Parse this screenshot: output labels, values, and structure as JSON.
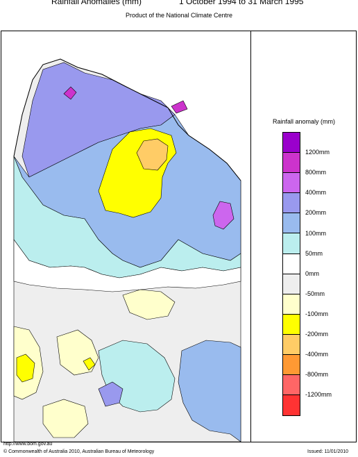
{
  "header": {
    "title": "Rainfall Anomalies (mm)",
    "period": "1 October 1994 to 31 March 1995",
    "subtitle": "Product of the National Climate Centre"
  },
  "legend": {
    "title": "Rainfall anomaly (mm)",
    "bins": [
      {
        "color": "#9a00cc"
      },
      {
        "color": "#cc33cc"
      },
      {
        "color": "#cc66ee"
      },
      {
        "color": "#9999ee"
      },
      {
        "color": "#99bbee"
      },
      {
        "color": "#bbeeee"
      },
      {
        "color": "#ffffff"
      },
      {
        "color": "#eeeeee"
      },
      {
        "color": "#ffffcc"
      },
      {
        "color": "#ffff00"
      },
      {
        "color": "#ffcc66"
      },
      {
        "color": "#ff9933"
      },
      {
        "color": "#ff6666"
      },
      {
        "color": "#ff3333"
      }
    ],
    "labels": [
      "1200mm",
      "800mm",
      "400mm",
      "200mm",
      "100mm",
      "50mm",
      "0mm",
      "-50mm",
      "-100mm",
      "-200mm",
      "-400mm",
      "-800mm",
      "-1200mm"
    ]
  },
  "map": {
    "colors": {
      "sea": "#ffffff",
      "light_purple": "#9999ee",
      "purple": "#cc66ee",
      "magenta": "#cc33cc",
      "blue": "#99bbee",
      "cyan": "#bbeeee",
      "white": "#ffffff",
      "grey": "#eeeeee",
      "pale_yellow": "#ffffcc",
      "yellow": "#ffff00",
      "orange": "#ffcc66"
    }
  },
  "footer": {
    "url": "http://www.bom.gov.au",
    "copyright": "© Commonwealth of Australia 2010, Australian Bureau of Meteorology",
    "issued": "Issued: 11/01/2010"
  }
}
